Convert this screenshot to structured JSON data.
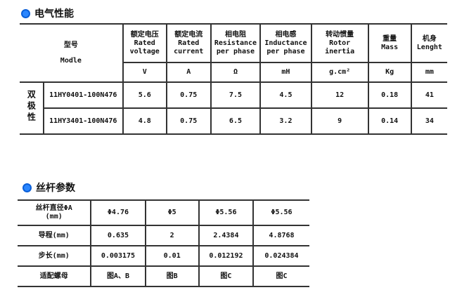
{
  "electrical": {
    "title": "电气性能",
    "model_header_cn": "型号",
    "model_header_en": "Modle",
    "columns": [
      {
        "cn": "额定电压",
        "en1": "Rated",
        "en2": "voltage",
        "unit": "V"
      },
      {
        "cn": "额定电流",
        "en1": "Rated",
        "en2": "current",
        "unit": "A"
      },
      {
        "cn": "相电阻",
        "en1": "Resistance",
        "en2": "per phase",
        "unit": "Ω"
      },
      {
        "cn": "相电感",
        "en1": "Inductance",
        "en2": "per phase",
        "unit": "mH"
      },
      {
        "cn": "转动惯量",
        "en1": "Rotor",
        "en2": "inertia",
        "unit": "g.cm²"
      },
      {
        "cn": "重量",
        "en1": "Mass",
        "en2": "",
        "unit": "Kg"
      },
      {
        "cn": "机身",
        "en1": "Lenght",
        "en2": "",
        "unit": "mm"
      }
    ],
    "group": "双极性",
    "rows": [
      {
        "model": "11HY0401-100N476",
        "values": [
          "5.6",
          "0.75",
          "7.5",
          "4.5",
          "12",
          "0.18",
          "41"
        ]
      },
      {
        "model": "11HY3401-100N476",
        "values": [
          "4.8",
          "0.75",
          "6.5",
          "3.2",
          "9",
          "0.14",
          "34"
        ]
      }
    ]
  },
  "screw": {
    "title": "丝杆参数",
    "rows": [
      {
        "label": "丝杆直径ΦA",
        "sub": "(mm)",
        "values": [
          "Φ4.76",
          "Φ5",
          "Φ5.56",
          "Φ5.56"
        ]
      },
      {
        "label": "导程(mm)",
        "values": [
          "0.635",
          "2",
          "2.4384",
          "4.8768"
        ]
      },
      {
        "label": "步长(mm)",
        "values": [
          "0.003175",
          "0.01",
          "0.012192",
          "0.024384"
        ]
      },
      {
        "label": "适配螺母",
        "values": [
          "图A、B",
          "图B",
          "图C",
          "图C"
        ]
      }
    ]
  },
  "colors": {
    "accent": "#2a86ff"
  }
}
